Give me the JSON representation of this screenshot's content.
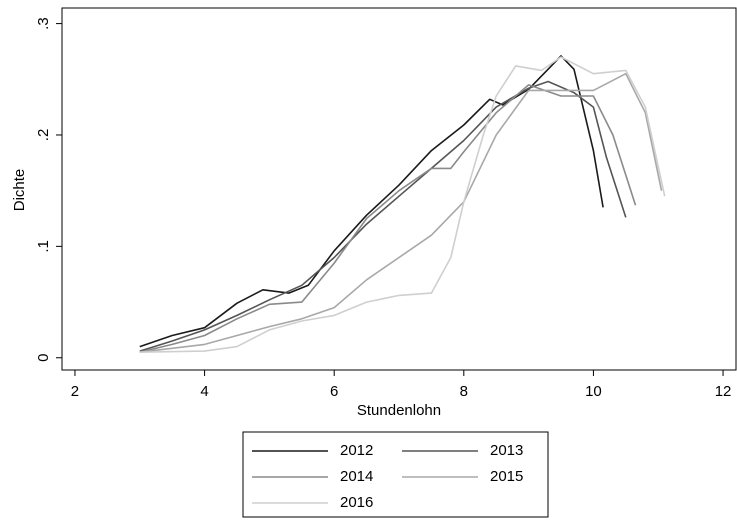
{
  "chart_data": {
    "type": "line",
    "xlabel": "Stundenlohn",
    "ylabel": "Dichte",
    "xlim": [
      1.8,
      12.2
    ],
    "xticks": [
      2,
      4,
      6,
      8,
      10,
      12
    ],
    "ylim": [
      -0.011,
      0.314
    ],
    "yticks": [
      0,
      {
        "value": 0.1,
        "label": ".1"
      },
      {
        "value": 0.2,
        "label": ".2"
      },
      {
        "value": 0.3,
        "label": ".3"
      }
    ],
    "grid": false,
    "series": [
      {
        "name": "2012",
        "color": "#1a1a1a",
        "x": [
          3,
          3.5,
          4,
          4.5,
          4.9,
          5.3,
          5.6,
          6,
          6.5,
          7,
          7.5,
          8,
          8.4,
          8.6,
          9,
          9.5,
          9.7,
          10,
          10.15
        ],
        "values": [
          0.01,
          0.02,
          0.027,
          0.049,
          0.061,
          0.058,
          0.065,
          0.096,
          0.128,
          0.155,
          0.186,
          0.209,
          0.232,
          0.227,
          0.241,
          0.271,
          0.259,
          0.186,
          0.135
        ]
      },
      {
        "name": "2013",
        "color": "#555555",
        "x": [
          3,
          3.5,
          4,
          4.5,
          5,
          5.5,
          6,
          6.5,
          7,
          7.5,
          8,
          8.5,
          9,
          9.3,
          9.7,
          10,
          10.2,
          10.5
        ],
        "values": [
          0.006,
          0.015,
          0.025,
          0.038,
          0.052,
          0.065,
          0.09,
          0.12,
          0.145,
          0.17,
          0.195,
          0.225,
          0.242,
          0.248,
          0.238,
          0.225,
          0.18,
          0.126
        ]
      },
      {
        "name": "2014",
        "color": "#8a8a8a",
        "x": [
          3,
          3.5,
          4,
          4.5,
          5,
          5.5,
          6,
          6.5,
          7,
          7.5,
          7.8,
          8,
          8.5,
          9,
          9.5,
          10,
          10.3,
          10.65
        ],
        "values": [
          0.005,
          0.012,
          0.02,
          0.035,
          0.048,
          0.05,
          0.085,
          0.125,
          0.15,
          0.17,
          0.17,
          0.185,
          0.22,
          0.245,
          0.235,
          0.235,
          0.2,
          0.137
        ]
      },
      {
        "name": "2015",
        "color": "#a8a8a8",
        "x": [
          3,
          4,
          5,
          5.5,
          6,
          6.5,
          7,
          7.5,
          8,
          8.5,
          9,
          9.5,
          10,
          10.5,
          10.8,
          11.05
        ],
        "values": [
          0.005,
          0.012,
          0.028,
          0.035,
          0.045,
          0.07,
          0.09,
          0.11,
          0.14,
          0.2,
          0.24,
          0.24,
          0.24,
          0.255,
          0.22,
          0.15
        ]
      },
      {
        "name": "2016",
        "color": "#cfcfcf",
        "x": [
          3,
          4,
          4.5,
          5,
          5.5,
          6,
          6.5,
          7,
          7.5,
          7.8,
          8,
          8.3,
          8.5,
          8.8,
          9.2,
          9.5,
          10,
          10.5,
          10.8,
          11.1
        ],
        "values": [
          0.005,
          0.006,
          0.01,
          0.025,
          0.033,
          0.038,
          0.05,
          0.056,
          0.058,
          0.09,
          0.14,
          0.2,
          0.235,
          0.262,
          0.258,
          0.27,
          0.255,
          0.258,
          0.225,
          0.145
        ]
      }
    ]
  }
}
